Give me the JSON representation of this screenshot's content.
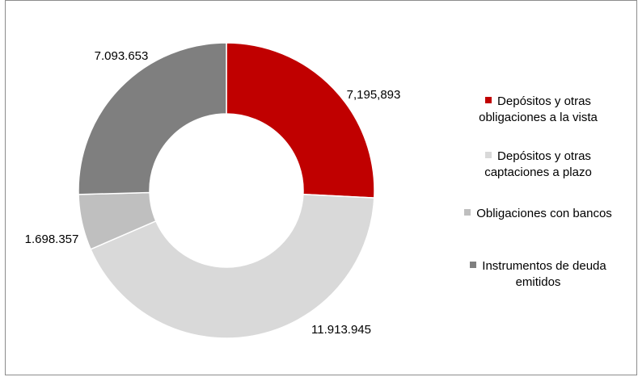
{
  "chart_data": {
    "type": "pie",
    "donut": true,
    "title": "",
    "legend_position": "right",
    "slices": [
      {
        "label": "Depósitos y otras obligaciones a la vista",
        "value": 7195893,
        "display": "7,195,893",
        "color": "#c00000"
      },
      {
        "label": "Depósitos y otras captaciones a plazo",
        "value": 11913945,
        "display": "11.913.945",
        "color": "#d9d9d9"
      },
      {
        "label": "Obligaciones con bancos",
        "value": 1698357,
        "display": "1.698.357",
        "color": "#bfbfbf"
      },
      {
        "label": "Instrumentos de deuda emitidos",
        "value": 7093653,
        "display": "7.093.653",
        "color": "#7f7f7f"
      }
    ]
  },
  "legend": {
    "items": [
      {
        "lines": [
          "Depósitos y otras",
          "obligaciones a la vista"
        ],
        "color": "#c00000"
      },
      {
        "lines": [
          "Depósitos y otras",
          "captaciones a plazo"
        ],
        "color": "#d9d9d9"
      },
      {
        "lines": [
          "Obligaciones con bancos"
        ],
        "color": "#bfbfbf"
      },
      {
        "lines": [
          "Instrumentos de deuda",
          "emitidos"
        ],
        "color": "#7f7f7f"
      }
    ]
  }
}
